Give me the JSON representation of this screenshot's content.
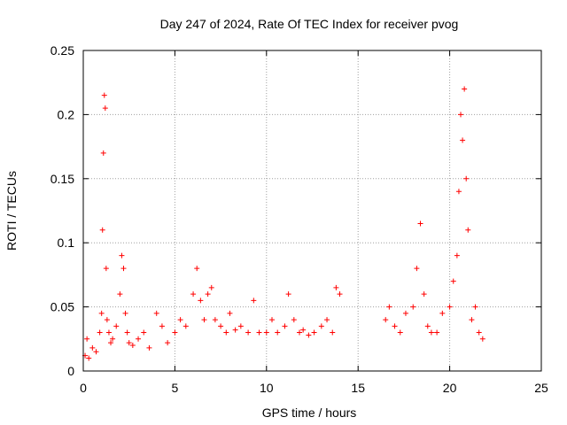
{
  "chart_data": {
    "type": "scatter",
    "title": "Day 247 of 2024, Rate Of TEC Index for receiver pvog",
    "xlabel": "GPS time / hours",
    "ylabel": "ROTI / TECUs",
    "xlim": [
      0,
      25
    ],
    "ylim": [
      0,
      0.25
    ],
    "x_ticks": [
      0,
      5,
      10,
      15,
      20,
      25
    ],
    "x_tick_labels": [
      "0",
      "5",
      "10",
      "15",
      "20",
      "25"
    ],
    "y_ticks": [
      0,
      0.05,
      0.1,
      0.15,
      0.2,
      0.25
    ],
    "y_tick_labels": [
      "0",
      "0.05",
      "0.1",
      "0.15",
      "0.2",
      "0.25"
    ],
    "grid": true,
    "marker": "+",
    "series": [
      {
        "name": "ROTI",
        "color": "#ff0000",
        "x": [
          0.1,
          0.2,
          0.3,
          0.5,
          0.7,
          0.9,
          1.0,
          1.05,
          1.1,
          1.15,
          1.2,
          1.25,
          1.3,
          1.4,
          1.5,
          1.6,
          1.8,
          2.0,
          2.1,
          2.2,
          2.3,
          2.4,
          2.5,
          2.7,
          3.0,
          3.3,
          3.6,
          4.0,
          4.3,
          4.6,
          5.0,
          5.3,
          5.6,
          6.0,
          6.2,
          6.4,
          6.6,
          6.8,
          7.0,
          7.2,
          7.5,
          7.8,
          8.0,
          8.3,
          8.6,
          9.0,
          9.3,
          9.6,
          10.0,
          10.3,
          10.6,
          11.0,
          11.2,
          11.5,
          11.8,
          12.0,
          12.3,
          12.6,
          13.0,
          13.3,
          13.6,
          13.8,
          14.0,
          16.5,
          16.7,
          17.0,
          17.3,
          17.6,
          18.0,
          18.2,
          18.4,
          18.6,
          18.8,
          19.0,
          19.3,
          19.6,
          20.0,
          20.2,
          20.4,
          20.5,
          20.6,
          20.7,
          20.8,
          20.9,
          21.0,
          21.2,
          21.4,
          21.6,
          21.8
        ],
        "y": [
          0.012,
          0.025,
          0.01,
          0.018,
          0.015,
          0.03,
          0.045,
          0.11,
          0.17,
          0.215,
          0.205,
          0.08,
          0.04,
          0.03,
          0.022,
          0.025,
          0.035,
          0.06,
          0.09,
          0.08,
          0.045,
          0.03,
          0.022,
          0.02,
          0.025,
          0.03,
          0.018,
          0.045,
          0.035,
          0.022,
          0.03,
          0.04,
          0.035,
          0.06,
          0.08,
          0.055,
          0.04,
          0.06,
          0.065,
          0.04,
          0.035,
          0.03,
          0.045,
          0.032,
          0.035,
          0.03,
          0.055,
          0.03,
          0.03,
          0.04,
          0.03,
          0.035,
          0.06,
          0.04,
          0.03,
          0.032,
          0.028,
          0.03,
          0.035,
          0.04,
          0.03,
          0.065,
          0.06,
          0.04,
          0.05,
          0.035,
          0.03,
          0.045,
          0.05,
          0.08,
          0.115,
          0.06,
          0.035,
          0.03,
          0.03,
          0.045,
          0.05,
          0.07,
          0.09,
          0.14,
          0.2,
          0.18,
          0.22,
          0.15,
          0.11,
          0.04,
          0.05,
          0.03,
          0.025
        ]
      }
    ]
  }
}
